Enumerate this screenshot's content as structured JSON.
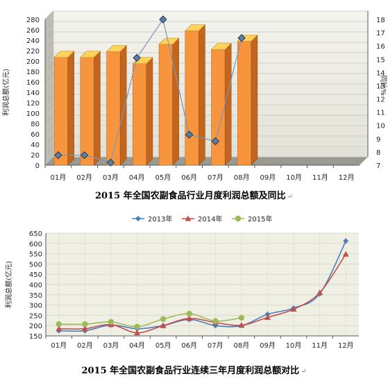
{
  "chart_data": [
    {
      "type": "bar",
      "caption": "2015 年全国农副食品行业月度利润总额及同比",
      "categories": [
        "01月",
        "02月",
        "03月",
        "04月",
        "05月",
        "06月",
        "07月",
        "08月",
        "09月",
        "10月",
        "11月",
        "12月"
      ],
      "ylabel": "利润总额(亿元)",
      "y2label": "同比%",
      "ylim": [
        0,
        280
      ],
      "y2lim": [
        7,
        18
      ],
      "yticks": [
        0,
        20,
        40,
        60,
        80,
        100,
        120,
        140,
        160,
        180,
        200,
        220,
        240,
        260,
        280
      ],
      "y2ticks": [
        7,
        8,
        9,
        10,
        11,
        12,
        13,
        14,
        15,
        16,
        17,
        18
      ],
      "series": [
        {
          "kind": "bar",
          "values": [
            207,
            207,
            218,
            195,
            232,
            258,
            222,
            238,
            null,
            null,
            null,
            null
          ],
          "color": "#f5923e"
        },
        {
          "kind": "line",
          "axis": "right",
          "values": [
            7.75,
            7.75,
            7.2,
            15.1,
            18.0,
            9.3,
            8.8,
            16.6,
            null,
            null,
            null,
            null
          ],
          "color": "#7b97b8"
        }
      ],
      "grid": true
    },
    {
      "type": "line",
      "caption": "2015 年全国农副食品行业连续三年月度利润总额对比",
      "categories": [
        "01月",
        "02月",
        "03月",
        "04月",
        "05月",
        "06月",
        "07月",
        "08月",
        "09月",
        "10月",
        "11月",
        "12月"
      ],
      "ylabel": "利润总额(亿元)",
      "ylim": [
        150,
        650
      ],
      "yticks": [
        150,
        200,
        250,
        300,
        350,
        400,
        450,
        500,
        550,
        600,
        650
      ],
      "legend": "top",
      "series": [
        {
          "name": "2013年",
          "color": "#4a7ebb",
          "marker": "diamond",
          "values": [
            175,
            175,
            203,
            185,
            200,
            230,
            200,
            200,
            255,
            285,
            355,
            612
          ]
        },
        {
          "name": "2014年",
          "color": "#c0504d",
          "marker": "triangle",
          "values": [
            185,
            185,
            205,
            165,
            200,
            235,
            215,
            202,
            240,
            280,
            360,
            548
          ]
        },
        {
          "name": "2015年",
          "color": "#9bbb59",
          "marker": "circle",
          "values": [
            207,
            207,
            218,
            195,
            232,
            258,
            222,
            238,
            null,
            null,
            null,
            null
          ]
        }
      ],
      "grid": true
    }
  ]
}
